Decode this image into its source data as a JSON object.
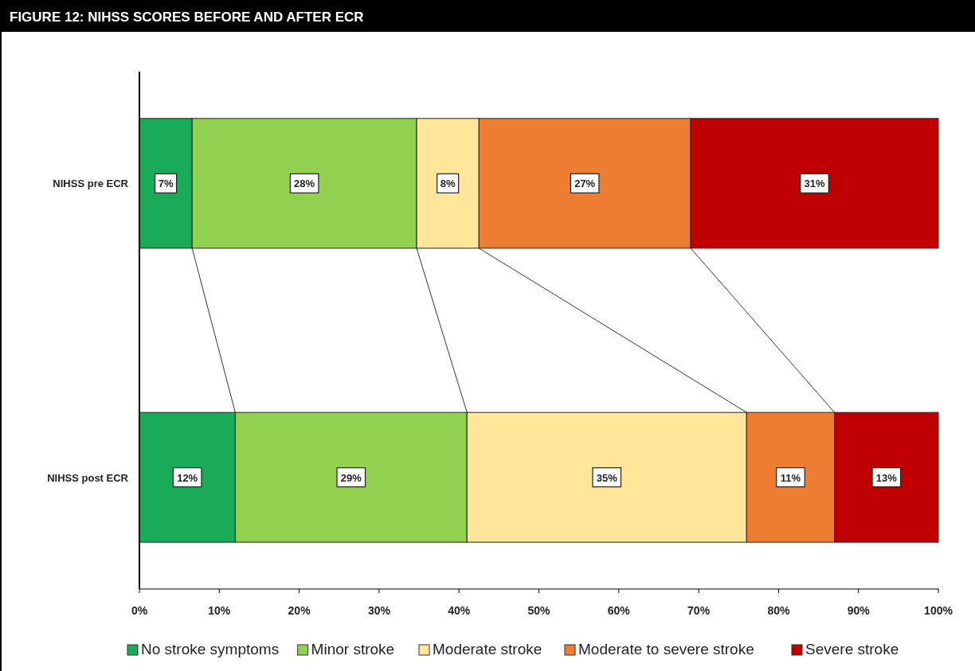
{
  "chart_data": {
    "type": "bar",
    "orientation": "horizontal",
    "stacked": true,
    "title": "FIGURE 12: NIHSS SCORES BEFORE AND AFTER ECR",
    "categories": [
      "NIHSS pre ECR",
      "NIHSS post ECR"
    ],
    "series": [
      {
        "name": "No stroke symptoms",
        "color": "#1aab58",
        "values": [
          6.6,
          12
        ],
        "value_labels": [
          "7%",
          "12%"
        ]
      },
      {
        "name": "Minor stroke",
        "color": "#92d050",
        "values": [
          28.1,
          29
        ],
        "value_labels": [
          "28%",
          "29%"
        ]
      },
      {
        "name": "Moderate stroke",
        "color": "#ffe699",
        "values": [
          7.8,
          35
        ],
        "value_labels": [
          "8%",
          "35%"
        ]
      },
      {
        "name": "Moderate to severe stroke",
        "color": "#ed7d31",
        "values": [
          26.5,
          11
        ],
        "value_labels": [
          "27%",
          "11%"
        ]
      },
      {
        "name": "Severe stroke",
        "color": "#c00000",
        "values": [
          31,
          13
        ],
        "value_labels": [
          "31%",
          "13%"
        ]
      }
    ],
    "xlim": [
      0,
      100
    ],
    "xticks": [
      {
        "value": 0,
        "label": "0%"
      },
      {
        "value": 10,
        "label": "10%"
      },
      {
        "value": 20,
        "label": "20%"
      },
      {
        "value": 30,
        "label": "30%"
      },
      {
        "value": 40,
        "label": "40%"
      },
      {
        "value": 50,
        "label": "50%"
      },
      {
        "value": 60,
        "label": "60%"
      },
      {
        "value": 70,
        "label": "70%"
      },
      {
        "value": 80,
        "label": "80%"
      },
      {
        "value": 90,
        "label": "90%"
      },
      {
        "value": 100,
        "label": "100%"
      }
    ],
    "grid": false,
    "legend": "bottom"
  }
}
